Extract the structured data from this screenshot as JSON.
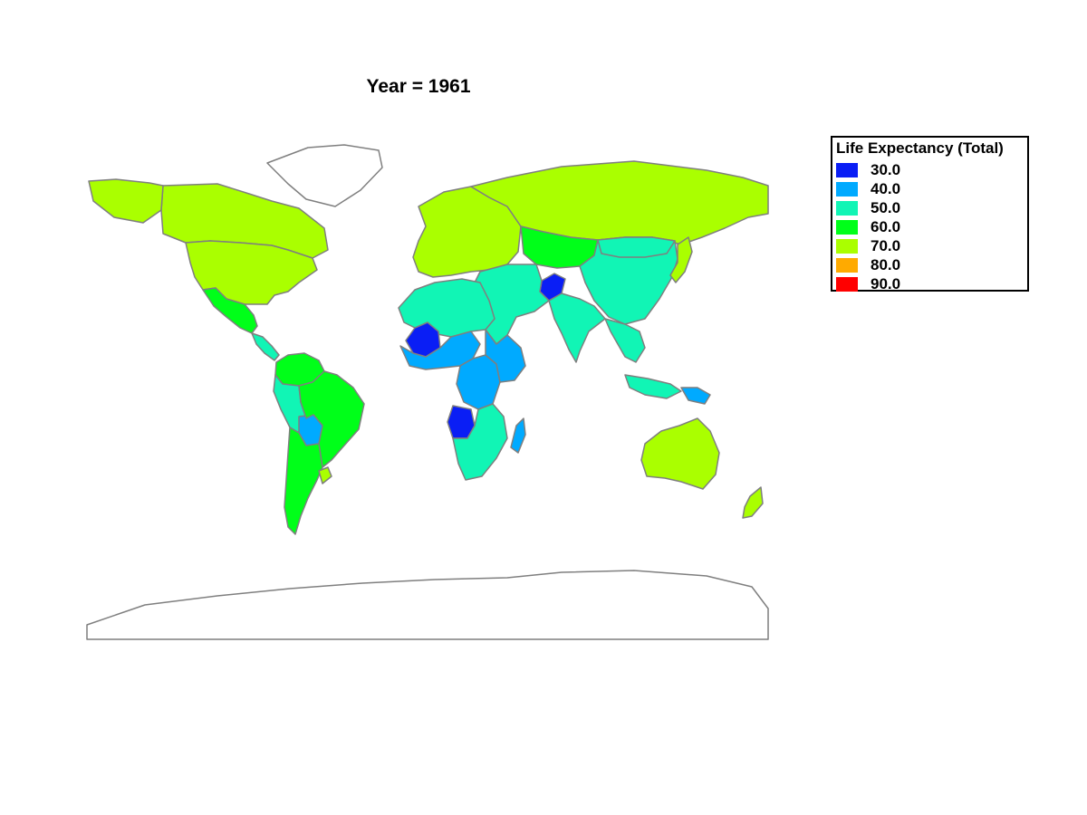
{
  "title": "Year = 1961",
  "legend": {
    "title": "Life Expectancy (Total)",
    "items": [
      {
        "label": "30.0",
        "color": "#0a1ef5"
      },
      {
        "label": "40.0",
        "color": "#00aaff"
      },
      {
        "label": "50.0",
        "color": "#11f5b5"
      },
      {
        "label": "60.0",
        "color": "#00ff19"
      },
      {
        "label": "70.0",
        "color": "#aaff00"
      },
      {
        "label": "80.0",
        "color": "#ffaa00"
      },
      {
        "label": "90.0",
        "color": "#ff0000"
      }
    ]
  },
  "map": {
    "projection": "world choropleth",
    "border_color": "#7f7f7f",
    "regions": [
      {
        "name": "Canada",
        "bin": "70.0"
      },
      {
        "name": "Alaska",
        "bin": "70.0"
      },
      {
        "name": "Greenland",
        "bin": "none"
      },
      {
        "name": "United States",
        "bin": "70.0"
      },
      {
        "name": "Mexico",
        "bin": "60.0"
      },
      {
        "name": "Central America",
        "bin": "50.0"
      },
      {
        "name": "Colombia / Venezuela",
        "bin": "60.0"
      },
      {
        "name": "Peru / Ecuador",
        "bin": "50.0"
      },
      {
        "name": "Bolivia",
        "bin": "40.0"
      },
      {
        "name": "Brazil",
        "bin": "60.0"
      },
      {
        "name": "Argentina / Chile",
        "bin": "60.0"
      },
      {
        "name": "Uruguay",
        "bin": "70.0"
      },
      {
        "name": "Europe",
        "bin": "70.0"
      },
      {
        "name": "Russia",
        "bin": "70.0"
      },
      {
        "name": "Central Asia",
        "bin": "60.0"
      },
      {
        "name": "China",
        "bin": "50.0"
      },
      {
        "name": "Mongolia",
        "bin": "50.0"
      },
      {
        "name": "Japan",
        "bin": "70.0"
      },
      {
        "name": "Afghanistan",
        "bin": "30.0"
      },
      {
        "name": "Iran / Middle East",
        "bin": "50.0"
      },
      {
        "name": "India",
        "bin": "50.0"
      },
      {
        "name": "Southeast Asia",
        "bin": "50.0"
      },
      {
        "name": "Indonesia",
        "bin": "50.0"
      },
      {
        "name": "New Guinea",
        "bin": "40.0"
      },
      {
        "name": "North Africa",
        "bin": "50.0"
      },
      {
        "name": "Mali",
        "bin": "30.0"
      },
      {
        "name": "West Africa",
        "bin": "40.0"
      },
      {
        "name": "Central Africa",
        "bin": "40.0"
      },
      {
        "name": "East Africa",
        "bin": "40.0"
      },
      {
        "name": "Angola",
        "bin": "30.0"
      },
      {
        "name": "Southern Africa",
        "bin": "50.0"
      },
      {
        "name": "Madagascar",
        "bin": "40.0"
      },
      {
        "name": "Australia",
        "bin": "70.0"
      },
      {
        "name": "New Zealand",
        "bin": "70.0"
      },
      {
        "name": "Antarctica",
        "bin": "none"
      }
    ]
  }
}
